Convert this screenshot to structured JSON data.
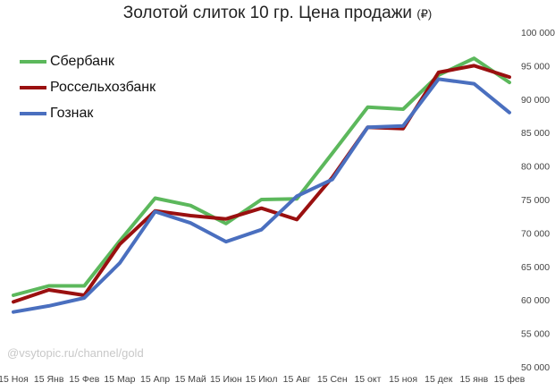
{
  "chart_data": {
    "type": "line",
    "title": "Золотой слиток 10 гр. Цена продажи",
    "title_unit": "(₽)",
    "categories": [
      "15 Ноя",
      "15 Янв",
      "15 Фев",
      "15 Мар",
      "15 Апр",
      "15 Май",
      "15 Июн",
      "15 Июл",
      "15 Авг",
      "15 Сен",
      "15 окт",
      "15 ноя",
      "15 дек",
      "15 янв",
      "15 фев"
    ],
    "ylim": [
      50000,
      100000
    ],
    "yticks": [
      "50 000",
      "55 000",
      "60 000",
      "65 000",
      "70 000",
      "75 000",
      "80 000",
      "85 000",
      "90 000",
      "95 000",
      "100 000"
    ],
    "grid": false,
    "legend_position": "top-left",
    "series": [
      {
        "name": "Сбербанк",
        "color": "#5cb85c",
        "values": [
          60700,
          62100,
          62100,
          68800,
          75200,
          74100,
          71400,
          75000,
          75100,
          81900,
          88800,
          88500,
          93600,
          96100,
          92500
        ]
      },
      {
        "name": "Россельхозбанк",
        "color": "#9a1010",
        "values": [
          59700,
          61500,
          60700,
          68300,
          73300,
          72600,
          72100,
          73700,
          72000,
          78300,
          85800,
          85600,
          94000,
          95000,
          93300
        ]
      },
      {
        "name": "Гознак",
        "color": "#4a6fbf",
        "values": [
          58200,
          59100,
          60300,
          65500,
          73200,
          71500,
          68700,
          70500,
          75500,
          78000,
          85800,
          86000,
          93000,
          92300,
          88000
        ]
      }
    ]
  },
  "watermark": "@vsytopic.ru/channel/gold"
}
